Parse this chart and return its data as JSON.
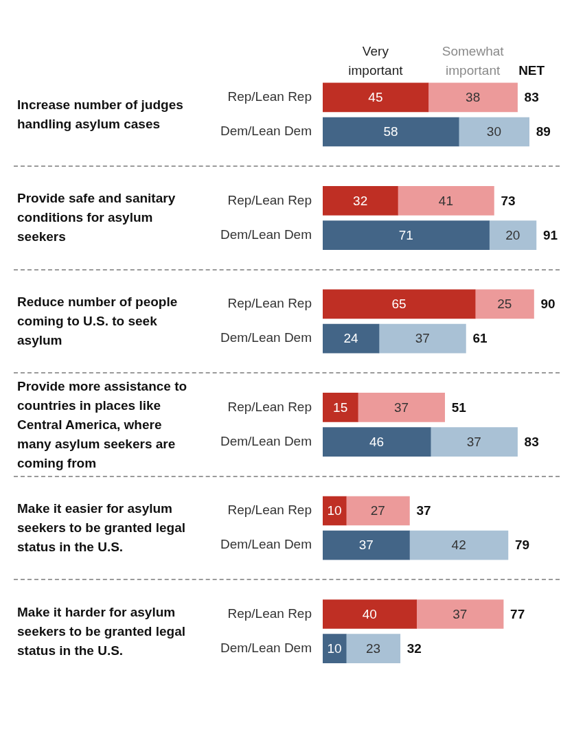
{
  "chart_data": {
    "type": "bar",
    "orientation": "horizontal",
    "stacked": true,
    "data_labels": true,
    "legend": "top",
    "categories": [
      "Rep/Lean Rep",
      "Dem/Lean Dem",
      "Rep/Lean Rep",
      "Dem/Lean Dem",
      "Rep/Lean Rep",
      "Dem/Lean Dem",
      "Rep/Lean Rep",
      "Dem/Lean Dem",
      "Rep/Lean Rep",
      "Dem/Lean Dem",
      "Rep/Lean Rep",
      "Dem/Lean Dem"
    ],
    "series": [
      {
        "name": "Very important",
        "colors": [
          "#bf2f24",
          "#436587",
          "#bf2f24",
          "#436587",
          "#bf2f24",
          "#436587",
          "#bf2f24",
          "#436587",
          "#bf2f24",
          "#436587",
          "#bf2f24",
          "#436587"
        ],
        "values": [
          45,
          58,
          32,
          71,
          65,
          24,
          15,
          46,
          10,
          37,
          40,
          10
        ]
      },
      {
        "name": "Somewhat important",
        "colors": [
          "#ec9a9a",
          "#a9c1d5",
          "#ec9a9a",
          "#a9c1d5",
          "#ec9a9a",
          "#a9c1d5",
          "#ec9a9a",
          "#a9c1d5",
          "#ec9a9a",
          "#a9c1d5",
          "#ec9a9a",
          "#a9c1d5"
        ],
        "values": [
          38,
          30,
          41,
          20,
          25,
          37,
          37,
          37,
          27,
          42,
          37,
          23
        ]
      }
    ],
    "totals": [
      "83",
      "89",
      "73",
      "91",
      "90",
      "61",
      "51",
      "83",
      "37",
      "79",
      "77",
      "32"
    ],
    "annotations": [
      "Increase number of judges handling asylum cases",
      "Provide safe and sanitary conditions for asylum seekers",
      "Reduce number of people coming to U.S. to seek asylum",
      "Provide more assistance to countries in places like Central America, where many asylum seekers are coming from",
      "Make it easier for asylum seekers to be granted legal status in the U.S.",
      "Make it harder for asylum seekers to be granted legal status in the U.S.",
      "NET"
    ]
  }
}
